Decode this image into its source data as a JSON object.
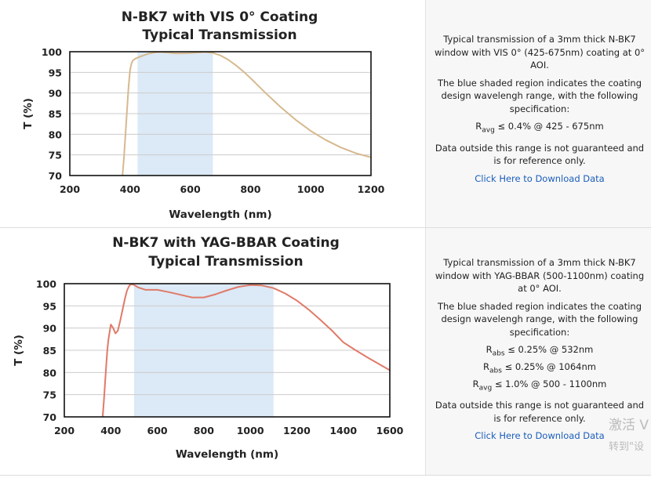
{
  "rows": [
    {
      "description": {
        "line1": "Typical transmission of a 3mm thick N-BK7 window with VIS 0° (425-675nm) coating at 0° AOI.",
        "line2": "The blue shaded region indicates the coating design wavelengh range, with the following specification:",
        "spec": [
          {
            "sym": "R",
            "sub": "avg",
            "text": " ≤ 0.4% @ 425 - 675nm"
          }
        ],
        "line3": "Data outside this range is not guaranteed and is for reference only.",
        "download": "Click Here to Download Data"
      }
    },
    {
      "description": {
        "line1": "Typical transmission of a 3mm thick N-BK7 window with YAG-BBAR (500-1100nm) coating at 0° AOI.",
        "line2": "The blue shaded region indicates the coating design wavelengh range, with the following specification:",
        "spec": [
          {
            "sym": "R",
            "sub": "abs",
            "text": " ≤ 0.25% @ 532nm"
          },
          {
            "sym": "R",
            "sub": "abs",
            "text": " ≤ 0.25% @ 1064nm"
          },
          {
            "sym": "R",
            "sub": "avg",
            "text": " ≤ 1.0% @ 500 - 1100nm"
          }
        ],
        "line3": "Data outside this range is not guaranteed and is for reference only.",
        "download": "Click Here to Download Data"
      }
    }
  ],
  "watermark": {
    "line1": "激活 V",
    "line2": "转到\"设"
  },
  "chart_data": [
    {
      "type": "line",
      "title": "N-BK7 with VIS 0° Coating",
      "subtitle": "Typical Transmission",
      "xlabel": "Wavelength (nm)",
      "ylabel": "T (%)",
      "xlim": [
        200,
        1200
      ],
      "ylim": [
        70,
        100
      ],
      "xticks": [
        200,
        400,
        600,
        800,
        1000,
        1200
      ],
      "yticks": [
        70,
        75,
        80,
        85,
        90,
        95,
        100
      ],
      "shaded_range": [
        425,
        675
      ],
      "grid": true,
      "colors": {
        "line": "#d6b98e",
        "shade": "#dce9f6",
        "grid": "#cccccc"
      },
      "series": [
        {
          "x": [
            375,
            380,
            385,
            390,
            395,
            400,
            405,
            410,
            415,
            420,
            430,
            445,
            460,
            480,
            500,
            525,
            550,
            575,
            600,
            625,
            650,
            675,
            700,
            725,
            750,
            775,
            800,
            850,
            900,
            950,
            1000,
            1050,
            1100,
            1150,
            1200
          ],
          "y": [
            70.0,
            74.5,
            80.0,
            86.0,
            91.5,
            95.5,
            97.2,
            97.9,
            98.2,
            98.4,
            98.7,
            99.1,
            99.5,
            99.8,
            99.9,
            99.8,
            99.6,
            99.6,
            99.7,
            99.8,
            99.9,
            99.7,
            99.1,
            98.1,
            96.8,
            95.3,
            93.6,
            90.0,
            86.6,
            83.5,
            80.8,
            78.6,
            76.8,
            75.4,
            74.4
          ]
        }
      ]
    },
    {
      "type": "line",
      "title": "N-BK7 with YAG-BBAR Coating",
      "subtitle": "Typical Transmission",
      "xlabel": "Wavelength (nm)",
      "ylabel": "T (%)",
      "xlim": [
        200,
        1600
      ],
      "ylim": [
        70,
        100
      ],
      "xticks": [
        200,
        400,
        600,
        800,
        1000,
        1200,
        1400,
        1600
      ],
      "yticks": [
        70,
        75,
        80,
        85,
        90,
        95,
        100
      ],
      "shaded_range": [
        500,
        1100
      ],
      "grid": true,
      "colors": {
        "line": "#e07a68",
        "shade": "#dce9f6",
        "grid": "#cccccc"
      },
      "series": [
        {
          "x": [
            365,
            370,
            375,
            380,
            385,
            390,
            400,
            410,
            420,
            430,
            440,
            450,
            460,
            470,
            480,
            490,
            500,
            520,
            550,
            600,
            650,
            700,
            750,
            800,
            850,
            900,
            950,
            1000,
            1050,
            1100,
            1150,
            1200,
            1250,
            1300,
            1350,
            1400,
            1450,
            1500,
            1550,
            1600
          ],
          "y": [
            70.0,
            73.5,
            77.5,
            81.5,
            85.0,
            87.5,
            90.8,
            90.0,
            88.8,
            89.4,
            91.5,
            94.0,
            96.5,
            98.5,
            99.6,
            99.9,
            99.7,
            99.1,
            98.6,
            98.6,
            98.1,
            97.5,
            96.9,
            96.9,
            97.6,
            98.5,
            99.3,
            99.7,
            99.6,
            99.0,
            97.8,
            96.2,
            94.2,
            91.9,
            89.5,
            86.8,
            85.1,
            83.5,
            82.0,
            80.5
          ]
        }
      ]
    }
  ]
}
